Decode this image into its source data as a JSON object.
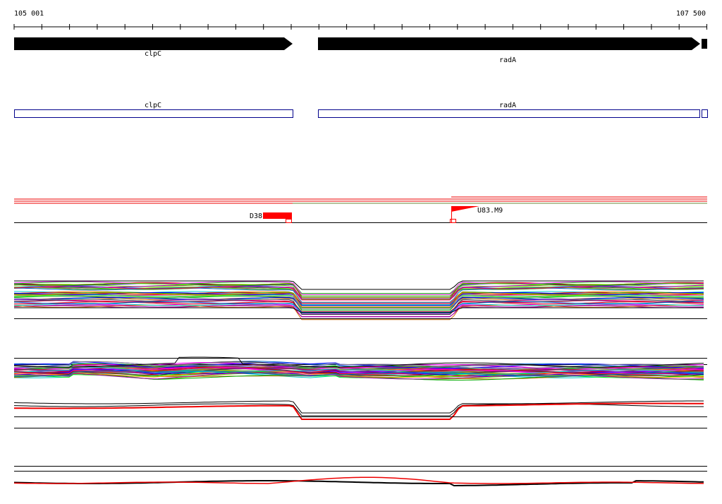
{
  "ruler": {
    "start": "105 001",
    "end": "107 500"
  },
  "genes": [
    {
      "label": "clpC"
    },
    {
      "label": "radA"
    }
  ],
  "transcripts": [
    {
      "label": "clpC"
    },
    {
      "label": "radA"
    }
  ],
  "features": [
    {
      "label": "D38"
    },
    {
      "label": "U83.M9"
    }
  ]
}
